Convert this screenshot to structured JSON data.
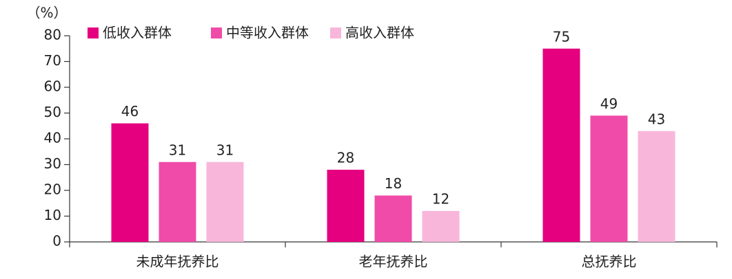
{
  "chart_data": {
    "type": "bar",
    "y_label": "（%）",
    "categories": [
      "未成年抚养比",
      "老年抚养比",
      "总抚养比"
    ],
    "series": [
      {
        "name": "低收入群体",
        "color": "#e4007f",
        "values": [
          46,
          28,
          75
        ]
      },
      {
        "name": "中等收入群体",
        "color": "#f04ba8",
        "values": [
          31,
          18,
          49
        ]
      },
      {
        "name": "高收入群体",
        "color": "#f8b6da",
        "values": [
          31,
          12,
          43
        ]
      }
    ],
    "ylim": [
      0,
      80
    ],
    "yticks": [
      0,
      10,
      20,
      30,
      40,
      50,
      60,
      70,
      80
    ],
    "legend": "top-left"
  }
}
